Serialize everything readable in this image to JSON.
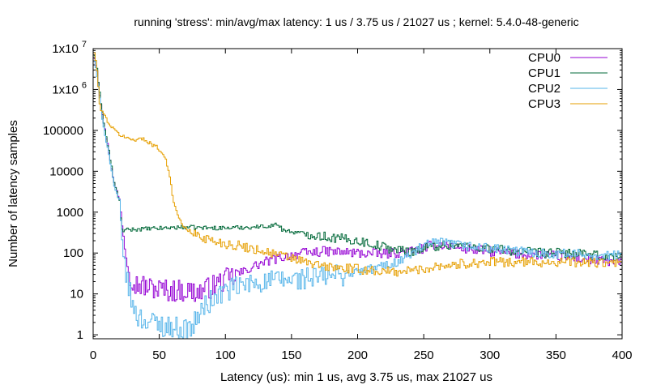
{
  "chart_data": {
    "type": "line",
    "title": "running 'stress': min/avg/max latency: 1 us / 3.75 us / 21027 us ; kernel: 5.4.0-48-generic",
    "xlabel": "Latency (us): min 1 us, avg 3.75 us, max 21027 us",
    "ylabel": "Number of latency samples",
    "xlim": [
      0,
      400
    ],
    "ylim": [
      0.8,
      10000000
    ],
    "yscale": "log",
    "x_ticks": [
      "0",
      "50",
      "100",
      "150",
      "200",
      "250",
      "300",
      "350",
      "400"
    ],
    "y_ticks": [
      {
        "value": 1,
        "label": "1"
      },
      {
        "value": 10,
        "label": "10"
      },
      {
        "value": 100,
        "label": "100"
      },
      {
        "value": 1000,
        "label": "1000"
      },
      {
        "value": 10000,
        "label": "10000"
      },
      {
        "value": 100000,
        "label": "100000"
      },
      {
        "value": 1000000,
        "label": "1x10",
        "exp": "6"
      },
      {
        "value": 10000000,
        "label": "1x10",
        "exp": "7"
      }
    ],
    "legend_position": "top-right",
    "series": [
      {
        "name": "CPU0",
        "color": "#9400d3",
        "points": [
          [
            1,
            6000000
          ],
          [
            3,
            3000000
          ],
          [
            5,
            800000
          ],
          [
            8,
            150000
          ],
          [
            12,
            30000
          ],
          [
            16,
            5000
          ],
          [
            20,
            2000
          ],
          [
            22,
            500
          ],
          [
            25,
            80
          ],
          [
            28,
            30
          ],
          [
            32,
            18
          ],
          [
            40,
            15
          ],
          [
            50,
            13
          ],
          [
            60,
            12
          ],
          [
            70,
            12
          ],
          [
            80,
            11
          ],
          [
            90,
            15
          ],
          [
            100,
            22
          ],
          [
            110,
            30
          ],
          [
            120,
            45
          ],
          [
            130,
            60
          ],
          [
            140,
            75
          ],
          [
            150,
            90
          ],
          [
            160,
            100
          ],
          [
            175,
            110
          ],
          [
            190,
            105
          ],
          [
            200,
            100
          ],
          [
            220,
            95
          ],
          [
            240,
            110
          ],
          [
            250,
            130
          ],
          [
            260,
            170
          ],
          [
            270,
            150
          ],
          [
            280,
            130
          ],
          [
            300,
            110
          ],
          [
            320,
            95
          ],
          [
            340,
            90
          ],
          [
            360,
            80
          ],
          [
            380,
            65
          ],
          [
            395,
            60
          ],
          [
            399,
            60
          ]
        ]
      },
      {
        "name": "CPU1",
        "color": "#006838",
        "points": [
          [
            1,
            7000000
          ],
          [
            3,
            3000000
          ],
          [
            5,
            900000
          ],
          [
            8,
            150000
          ],
          [
            12,
            30000
          ],
          [
            16,
            5000
          ],
          [
            20,
            1800
          ],
          [
            22,
            350
          ],
          [
            30,
            380
          ],
          [
            40,
            390
          ],
          [
            50,
            400
          ],
          [
            60,
            420
          ],
          [
            70,
            430
          ],
          [
            80,
            420
          ],
          [
            90,
            410
          ],
          [
            100,
            410
          ],
          [
            110,
            420
          ],
          [
            120,
            430
          ],
          [
            130,
            450
          ],
          [
            140,
            500
          ],
          [
            143,
            380
          ],
          [
            150,
            330
          ],
          [
            160,
            300
          ],
          [
            170,
            270
          ],
          [
            180,
            240
          ],
          [
            190,
            220
          ],
          [
            200,
            200
          ],
          [
            210,
            170
          ],
          [
            220,
            140
          ],
          [
            230,
            120
          ],
          [
            240,
            110
          ],
          [
            250,
            130
          ],
          [
            260,
            150
          ],
          [
            270,
            160
          ],
          [
            280,
            150
          ],
          [
            300,
            130
          ],
          [
            320,
            110
          ],
          [
            340,
            100
          ],
          [
            360,
            100
          ],
          [
            380,
            85
          ],
          [
            395,
            80
          ],
          [
            399,
            80
          ]
        ]
      },
      {
        "name": "CPU2",
        "color": "#56b4e9",
        "points": [
          [
            1,
            5000000
          ],
          [
            3,
            2000000
          ],
          [
            5,
            600000
          ],
          [
            8,
            120000
          ],
          [
            12,
            25000
          ],
          [
            16,
            4000
          ],
          [
            20,
            1800
          ],
          [
            22,
            200
          ],
          [
            25,
            30
          ],
          [
            28,
            10
          ],
          [
            30,
            5
          ],
          [
            35,
            2.5
          ],
          [
            45,
            2
          ],
          [
            60,
            1.5
          ],
          [
            70,
            1.3
          ],
          [
            75,
            1.5
          ],
          [
            80,
            3
          ],
          [
            85,
            5
          ],
          [
            90,
            7
          ],
          [
            100,
            12
          ],
          [
            110,
            15
          ],
          [
            120,
            18
          ],
          [
            130,
            20
          ],
          [
            150,
            22
          ],
          [
            170,
            25
          ],
          [
            190,
            30
          ],
          [
            210,
            40
          ],
          [
            230,
            60
          ],
          [
            240,
            90
          ],
          [
            250,
            150
          ],
          [
            260,
            180
          ],
          [
            270,
            170
          ],
          [
            280,
            150
          ],
          [
            300,
            130
          ],
          [
            320,
            110
          ],
          [
            340,
            100
          ],
          [
            360,
            95
          ],
          [
            380,
            90
          ],
          [
            395,
            85
          ],
          [
            399,
            85
          ]
        ]
      },
      {
        "name": "CPU3",
        "color": "#e69f00",
        "points": [
          [
            1,
            8000000
          ],
          [
            3,
            3000000
          ],
          [
            5,
            400000
          ],
          [
            8,
            250000
          ],
          [
            12,
            150000
          ],
          [
            16,
            100000
          ],
          [
            20,
            80000
          ],
          [
            25,
            65000
          ],
          [
            30,
            60000
          ],
          [
            35,
            62000
          ],
          [
            40,
            58000
          ],
          [
            45,
            45000
          ],
          [
            50,
            35000
          ],
          [
            55,
            20000
          ],
          [
            58,
            8000
          ],
          [
            60,
            2500
          ],
          [
            63,
            1000
          ],
          [
            66,
            600
          ],
          [
            70,
            400
          ],
          [
            75,
            300
          ],
          [
            80,
            270
          ],
          [
            90,
            200
          ],
          [
            100,
            170
          ],
          [
            110,
            150
          ],
          [
            120,
            130
          ],
          [
            130,
            110
          ],
          [
            140,
            90
          ],
          [
            150,
            75
          ],
          [
            160,
            60
          ],
          [
            170,
            50
          ],
          [
            180,
            45
          ],
          [
            190,
            42
          ],
          [
            200,
            40
          ],
          [
            210,
            38
          ],
          [
            220,
            35
          ],
          [
            230,
            35
          ],
          [
            240,
            38
          ],
          [
            250,
            40
          ],
          [
            260,
            50
          ],
          [
            270,
            50
          ],
          [
            280,
            55
          ],
          [
            290,
            58
          ],
          [
            300,
            60
          ],
          [
            320,
            60
          ],
          [
            340,
            60
          ],
          [
            360,
            60
          ],
          [
            380,
            58
          ],
          [
            395,
            55
          ],
          [
            399,
            55
          ]
        ]
      }
    ]
  }
}
